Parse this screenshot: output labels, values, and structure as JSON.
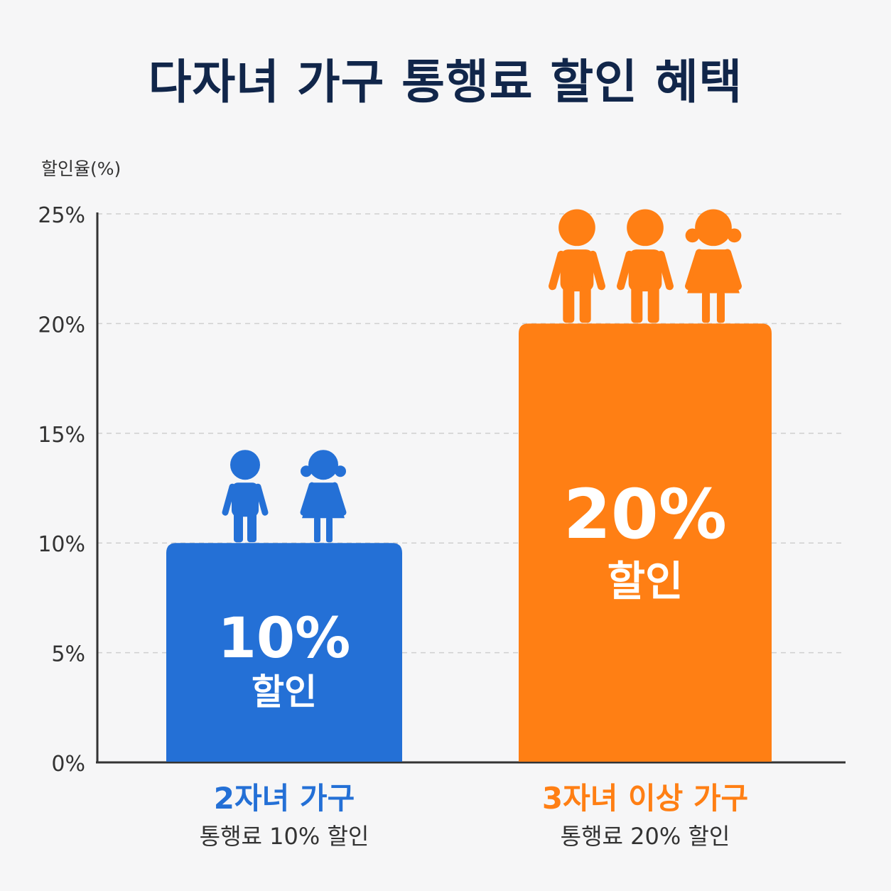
{
  "title": "다자녀 가구 통행료 할인 혜택",
  "colors": {
    "blue": "#2470d6",
    "orange": "#ff7f14",
    "title": "#11264a",
    "axis": "#333333",
    "grid": "#cfcfcf",
    "bar_text": "#ffffff",
    "subtitle_text": "#333333"
  },
  "chart_data": {
    "type": "bar",
    "ylabel": "할인율(%)",
    "ylim": [
      0,
      25
    ],
    "yticks": [
      0,
      5,
      10,
      15,
      20,
      25
    ],
    "ytick_labels": [
      "0%",
      "5%",
      "10%",
      "15%",
      "20%",
      "25%"
    ],
    "grid": "dashed horizontal",
    "categories": [
      "2자녀 가구",
      "3자녀 이상 가구"
    ],
    "values": [
      10,
      20
    ],
    "bar_labels": [
      {
        "value": "10%",
        "text": "할인"
      },
      {
        "value": "20%",
        "text": "할인"
      }
    ],
    "category_sublabels": [
      "통행료 10% 할인",
      "통행료 20% 할인"
    ],
    "bar_colors": [
      "#2470d6",
      "#ff7f14"
    ],
    "icons": [
      [
        "boy-icon",
        "girl-icon"
      ],
      [
        "boy-icon",
        "boy-icon",
        "girl-icon"
      ]
    ]
  }
}
